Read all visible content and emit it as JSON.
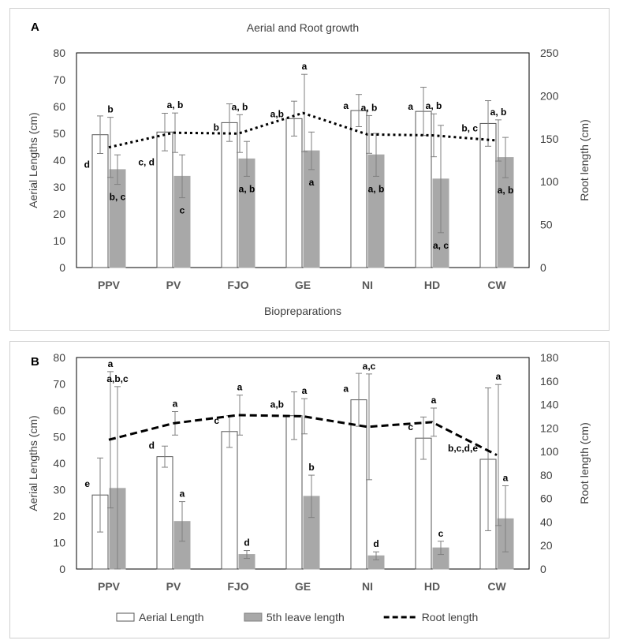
{
  "chart_data": [
    {
      "panel_label": "A",
      "type": "bar",
      "title": "Aerial and Root growth",
      "xlabel": "Biopreparations",
      "ylabel": "Aerial Lengths (cm)",
      "y2label": "Root length (cm)",
      "ylim": [
        0,
        80
      ],
      "y2lim": [
        0,
        250
      ],
      "yticks": [
        "0",
        "10",
        "20",
        "30",
        "40",
        "50",
        "60",
        "70",
        "80"
      ],
      "y2ticks": [
        "0",
        "50",
        "100",
        "150",
        "200",
        "250"
      ],
      "categories": [
        "PPV",
        "PV",
        "FJO",
        "GE",
        "NI",
        "HD",
        "CW"
      ],
      "series": [
        {
          "name": "Aerial Length",
          "kind": "bar",
          "color": "#ffffff",
          "stroke": "#555555",
          "values": [
            49.5,
            50.5,
            54,
            55.5,
            58.5,
            58.2,
            53.7
          ],
          "errors": [
            7,
            7,
            7,
            6.5,
            6,
            9,
            8.5
          ],
          "letters": [
            "d",
            "c, d",
            "b",
            "a,b",
            "a",
            "a",
            "b, c"
          ]
        },
        {
          "name": "5th leave length",
          "kind": "bar",
          "color": "#a8a8a8",
          "stroke": "#a8a8a8",
          "values": [
            36.5,
            34,
            40.5,
            43.5,
            42,
            33,
            41
          ],
          "errors": [
            5.5,
            8,
            6.5,
            7,
            8,
            20,
            7.5
          ],
          "letters": [
            "b, c",
            "c",
            "a, b",
            "a",
            "a, b",
            "a, c",
            "a, b"
          ]
        },
        {
          "name": "Root length",
          "kind": "line",
          "color": "#000000",
          "dash": "3,4",
          "axis": "y2",
          "values": [
            140,
            157,
            156,
            180,
            155,
            154,
            148
          ],
          "errors": [
            35,
            23,
            22,
            45,
            22,
            25,
            24
          ],
          "letters": [
            "b",
            "a, b",
            "a, b",
            "a",
            "a, b",
            "a, b",
            "a, b"
          ]
        }
      ]
    },
    {
      "panel_label": "B",
      "type": "bar",
      "title": "",
      "xlabel": "",
      "ylabel": "Aerial Lengths (cm)",
      "y2label": "Root length (cm)",
      "ylim": [
        0,
        80
      ],
      "y2lim": [
        0,
        180
      ],
      "yticks": [
        "0",
        "10",
        "20",
        "30",
        "40",
        "50",
        "60",
        "70",
        "80"
      ],
      "y2ticks": [
        "0",
        "20",
        "40",
        "60",
        "80",
        "100",
        "120",
        "140",
        "160",
        "180"
      ],
      "categories": [
        "PPV",
        "PV",
        "FJO",
        "GE",
        "NI",
        "HD",
        "CW"
      ],
      "series": [
        {
          "name": "Aerial Length",
          "kind": "bar",
          "color": "#ffffff",
          "stroke": "#555555",
          "values": [
            28,
            42.5,
            52,
            58,
            64,
            49.5,
            41.5
          ],
          "errors": [
            14,
            4,
            6,
            9,
            10,
            8,
            27
          ],
          "letters": [
            "e",
            "d",
            "c",
            "a,b",
            "a",
            "c",
            "b,c,d,e"
          ]
        },
        {
          "name": "5th leave length",
          "kind": "bar",
          "color": "#a8a8a8",
          "stroke": "#a8a8a8",
          "values": [
            30.5,
            18,
            5.5,
            27.5,
            5,
            8,
            19
          ],
          "errors": [
            38.5,
            7.5,
            1.5,
            8,
            1.5,
            2.5,
            12.5
          ],
          "letters": [
            "a,b,c",
            "a",
            "d",
            "b",
            "d",
            "c",
            "a"
          ]
        },
        {
          "name": "Root length",
          "kind": "line",
          "color": "#000000",
          "dash": "9,5",
          "axis": "y2",
          "values": [
            110,
            124,
            131,
            130,
            121,
            125,
            97
          ],
          "errors": [
            58,
            10,
            17,
            15,
            45,
            12,
            60
          ],
          "letters": [
            "a",
            "a",
            "a",
            "a",
            "a,c",
            "a",
            "a"
          ]
        }
      ],
      "legend": {
        "position": "bottom"
      }
    }
  ]
}
